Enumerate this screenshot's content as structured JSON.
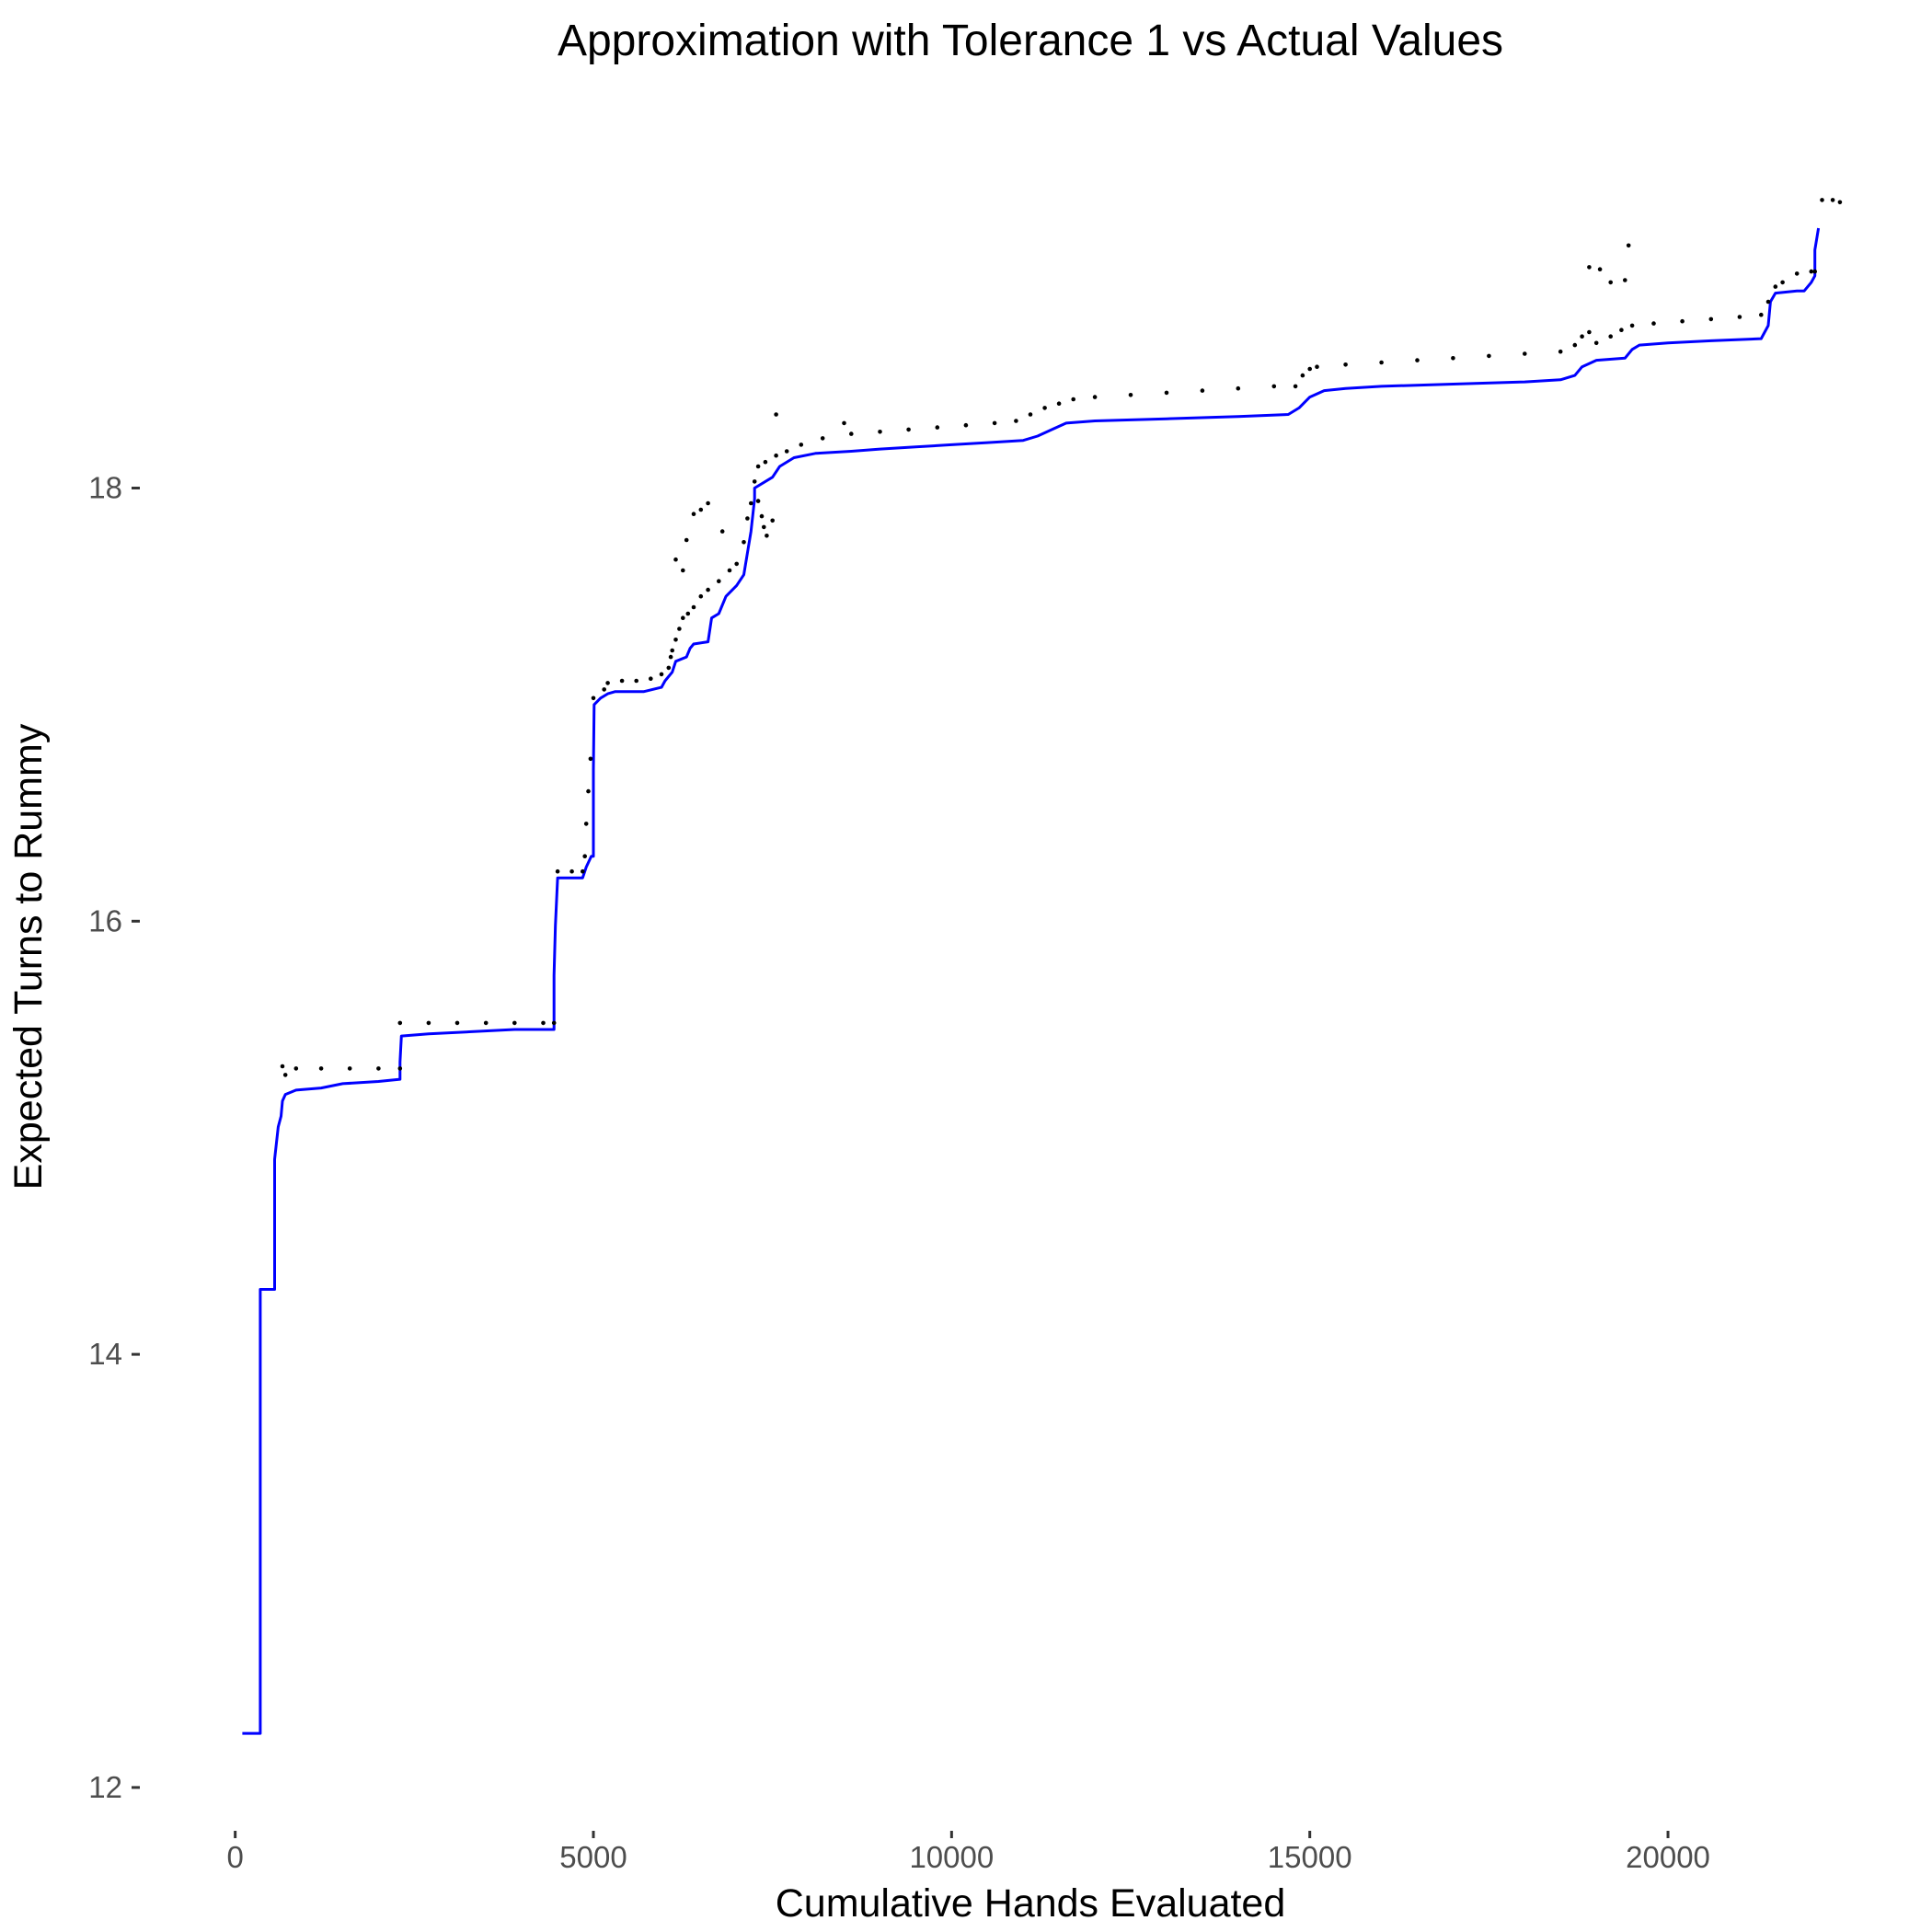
{
  "chart_data": {
    "type": "line",
    "title": "Approximation with Tolerance 1 vs Actual Values",
    "xlabel": "Cumulative Hands Evaluated",
    "ylabel": "Expected Turns to Rummy",
    "xlim": [
      -1100,
      23300
    ],
    "ylim": [
      11.8,
      19.85
    ],
    "x_ticks": [
      0,
      5000,
      10000,
      15000,
      20000
    ],
    "x_tick_labels": [
      "0",
      "5000",
      "10000",
      "15000",
      "20000"
    ],
    "y_ticks": [
      12,
      14,
      16,
      18
    ],
    "y_tick_labels": [
      "12",
      "14",
      "16",
      "18"
    ],
    "grid": false,
    "legend": "none",
    "series": [
      {
        "role": "approximation",
        "style": "points",
        "color": "#000000",
        "points": [
          [
            660,
            15.33
          ],
          [
            700,
            15.29
          ],
          [
            850,
            15.32
          ],
          [
            1200,
            15.32
          ],
          [
            1600,
            15.32
          ],
          [
            2000,
            15.32
          ],
          [
            2300,
            15.32
          ],
          [
            2300,
            15.53
          ],
          [
            2700,
            15.53
          ],
          [
            3100,
            15.53
          ],
          [
            3500,
            15.53
          ],
          [
            3900,
            15.53
          ],
          [
            4300,
            15.53
          ],
          [
            4450,
            15.53
          ],
          [
            4500,
            16.23
          ],
          [
            4700,
            16.23
          ],
          [
            4850,
            16.23
          ],
          [
            4880,
            16.3
          ],
          [
            4900,
            16.45
          ],
          [
            4930,
            16.6
          ],
          [
            4960,
            16.75
          ],
          [
            5000,
            17.03
          ],
          [
            5150,
            17.07
          ],
          [
            5200,
            17.1
          ],
          [
            5400,
            17.11
          ],
          [
            5600,
            17.11
          ],
          [
            5800,
            17.12
          ],
          [
            5950,
            17.14
          ],
          [
            6050,
            17.17
          ],
          [
            6080,
            17.22
          ],
          [
            6100,
            17.25
          ],
          [
            6150,
            17.3
          ],
          [
            6200,
            17.35
          ],
          [
            6250,
            17.4
          ],
          [
            6320,
            17.42
          ],
          [
            6400,
            17.45
          ],
          [
            6500,
            17.5
          ],
          [
            6600,
            17.53
          ],
          [
            6750,
            17.57
          ],
          [
            6900,
            17.62
          ],
          [
            7000,
            17.65
          ],
          [
            7100,
            17.75
          ],
          [
            7150,
            17.86
          ],
          [
            7200,
            17.93
          ],
          [
            7250,
            18.03
          ],
          [
            7300,
            18.1
          ],
          [
            7400,
            18.12
          ],
          [
            7550,
            18.15
          ],
          [
            7700,
            18.17
          ],
          [
            7900,
            18.2
          ],
          [
            8200,
            18.23
          ],
          [
            8600,
            18.25
          ],
          [
            9000,
            18.26
          ],
          [
            9400,
            18.27
          ],
          [
            9800,
            18.28
          ],
          [
            10200,
            18.29
          ],
          [
            10600,
            18.3
          ],
          [
            10900,
            18.31
          ],
          [
            11100,
            18.34
          ],
          [
            11300,
            18.37
          ],
          [
            11500,
            18.39
          ],
          [
            11700,
            18.41
          ],
          [
            12000,
            18.42
          ],
          [
            12500,
            18.43
          ],
          [
            13000,
            18.44
          ],
          [
            13500,
            18.45
          ],
          [
            14000,
            18.46
          ],
          [
            14500,
            18.47
          ],
          [
            14800,
            18.47
          ],
          [
            14900,
            18.52
          ],
          [
            15000,
            18.55
          ],
          [
            15100,
            18.56
          ],
          [
            15500,
            18.57
          ],
          [
            16000,
            18.58
          ],
          [
            16500,
            18.59
          ],
          [
            17000,
            18.6
          ],
          [
            17500,
            18.61
          ],
          [
            18000,
            18.62
          ],
          [
            18500,
            18.63
          ],
          [
            18700,
            18.66
          ],
          [
            18800,
            18.7
          ],
          [
            18900,
            18.72
          ],
          [
            19000,
            18.67
          ],
          [
            19200,
            18.7
          ],
          [
            19350,
            18.73
          ],
          [
            19500,
            18.75
          ],
          [
            19800,
            18.76
          ],
          [
            20200,
            18.77
          ],
          [
            20600,
            18.78
          ],
          [
            21000,
            18.79
          ],
          [
            21300,
            18.8
          ],
          [
            21400,
            18.86
          ],
          [
            21500,
            18.93
          ],
          [
            21600,
            18.95
          ],
          [
            21800,
            18.99
          ],
          [
            22000,
            19.0
          ],
          [
            22050,
            19.0
          ],
          [
            18900,
            19.02
          ],
          [
            19050,
            19.01
          ],
          [
            19200,
            18.95
          ],
          [
            19400,
            18.96
          ],
          [
            19450,
            19.12
          ],
          [
            22150,
            19.33
          ],
          [
            22300,
            19.33
          ],
          [
            22400,
            19.32
          ],
          [
            7550,
            18.34
          ],
          [
            8500,
            18.3
          ],
          [
            7500,
            17.85
          ],
          [
            6800,
            17.8
          ],
          [
            6600,
            17.93
          ],
          [
            6400,
            17.88
          ],
          [
            6500,
            17.9
          ],
          [
            6300,
            17.76
          ],
          [
            6150,
            17.67
          ],
          [
            6250,
            17.62
          ],
          [
            7300,
            17.94
          ],
          [
            7350,
            17.87
          ],
          [
            7380,
            17.82
          ],
          [
            7420,
            17.78
          ]
        ]
      },
      {
        "role": "actual",
        "style": "step",
        "color": "#0000ff",
        "points": [
          [
            100,
            12.25
          ],
          [
            350,
            12.25
          ],
          [
            350,
            14.3
          ],
          [
            550,
            14.3
          ],
          [
            550,
            14.9
          ],
          [
            600,
            15.05
          ],
          [
            640,
            15.1
          ],
          [
            660,
            15.17
          ],
          [
            700,
            15.2
          ],
          [
            850,
            15.22
          ],
          [
            1200,
            15.23
          ],
          [
            1500,
            15.25
          ],
          [
            2000,
            15.26
          ],
          [
            2300,
            15.27
          ],
          [
            2300,
            15.35
          ],
          [
            2320,
            15.47
          ],
          [
            2700,
            15.48
          ],
          [
            3300,
            15.49
          ],
          [
            3900,
            15.5
          ],
          [
            4450,
            15.5
          ],
          [
            4450,
            15.75
          ],
          [
            4470,
            15.98
          ],
          [
            4500,
            16.2
          ],
          [
            4850,
            16.2
          ],
          [
            4900,
            16.25
          ],
          [
            4970,
            16.3
          ],
          [
            5000,
            16.3
          ],
          [
            5000,
            16.7
          ],
          [
            5010,
            17.0
          ],
          [
            5100,
            17.03
          ],
          [
            5200,
            17.05
          ],
          [
            5300,
            17.06
          ],
          [
            5700,
            17.06
          ],
          [
            5950,
            17.08
          ],
          [
            6000,
            17.11
          ],
          [
            6100,
            17.15
          ],
          [
            6150,
            17.2
          ],
          [
            6300,
            17.22
          ],
          [
            6350,
            17.26
          ],
          [
            6400,
            17.28
          ],
          [
            6600,
            17.29
          ],
          [
            6650,
            17.4
          ],
          [
            6750,
            17.42
          ],
          [
            6850,
            17.5
          ],
          [
            7000,
            17.55
          ],
          [
            7100,
            17.6
          ],
          [
            7150,
            17.7
          ],
          [
            7200,
            17.8
          ],
          [
            7250,
            17.95
          ],
          [
            7250,
            18.0
          ],
          [
            7500,
            18.05
          ],
          [
            7600,
            18.1
          ],
          [
            7800,
            18.14
          ],
          [
            8100,
            18.16
          ],
          [
            8600,
            18.17
          ],
          [
            9000,
            18.18
          ],
          [
            9500,
            18.19
          ],
          [
            10000,
            18.2
          ],
          [
            10500,
            18.21
          ],
          [
            11000,
            18.22
          ],
          [
            11200,
            18.24
          ],
          [
            11400,
            18.27
          ],
          [
            11600,
            18.3
          ],
          [
            12000,
            18.31
          ],
          [
            13000,
            18.32
          ],
          [
            14000,
            18.33
          ],
          [
            14700,
            18.34
          ],
          [
            14850,
            18.37
          ],
          [
            15000,
            18.42
          ],
          [
            15200,
            18.45
          ],
          [
            15500,
            18.46
          ],
          [
            16000,
            18.47
          ],
          [
            17000,
            18.48
          ],
          [
            18000,
            18.49
          ],
          [
            18500,
            18.5
          ],
          [
            18700,
            18.52
          ],
          [
            18800,
            18.56
          ],
          [
            19000,
            18.59
          ],
          [
            19400,
            18.6
          ],
          [
            19500,
            18.64
          ],
          [
            19600,
            18.66
          ],
          [
            20000,
            18.67
          ],
          [
            20600,
            18.68
          ],
          [
            21300,
            18.69
          ],
          [
            21400,
            18.75
          ],
          [
            21430,
            18.86
          ],
          [
            21500,
            18.9
          ],
          [
            21800,
            18.91
          ],
          [
            21900,
            18.91
          ],
          [
            22000,
            18.95
          ],
          [
            22050,
            18.98
          ],
          [
            22050,
            19.1
          ],
          [
            22100,
            19.2
          ]
        ]
      }
    ]
  }
}
